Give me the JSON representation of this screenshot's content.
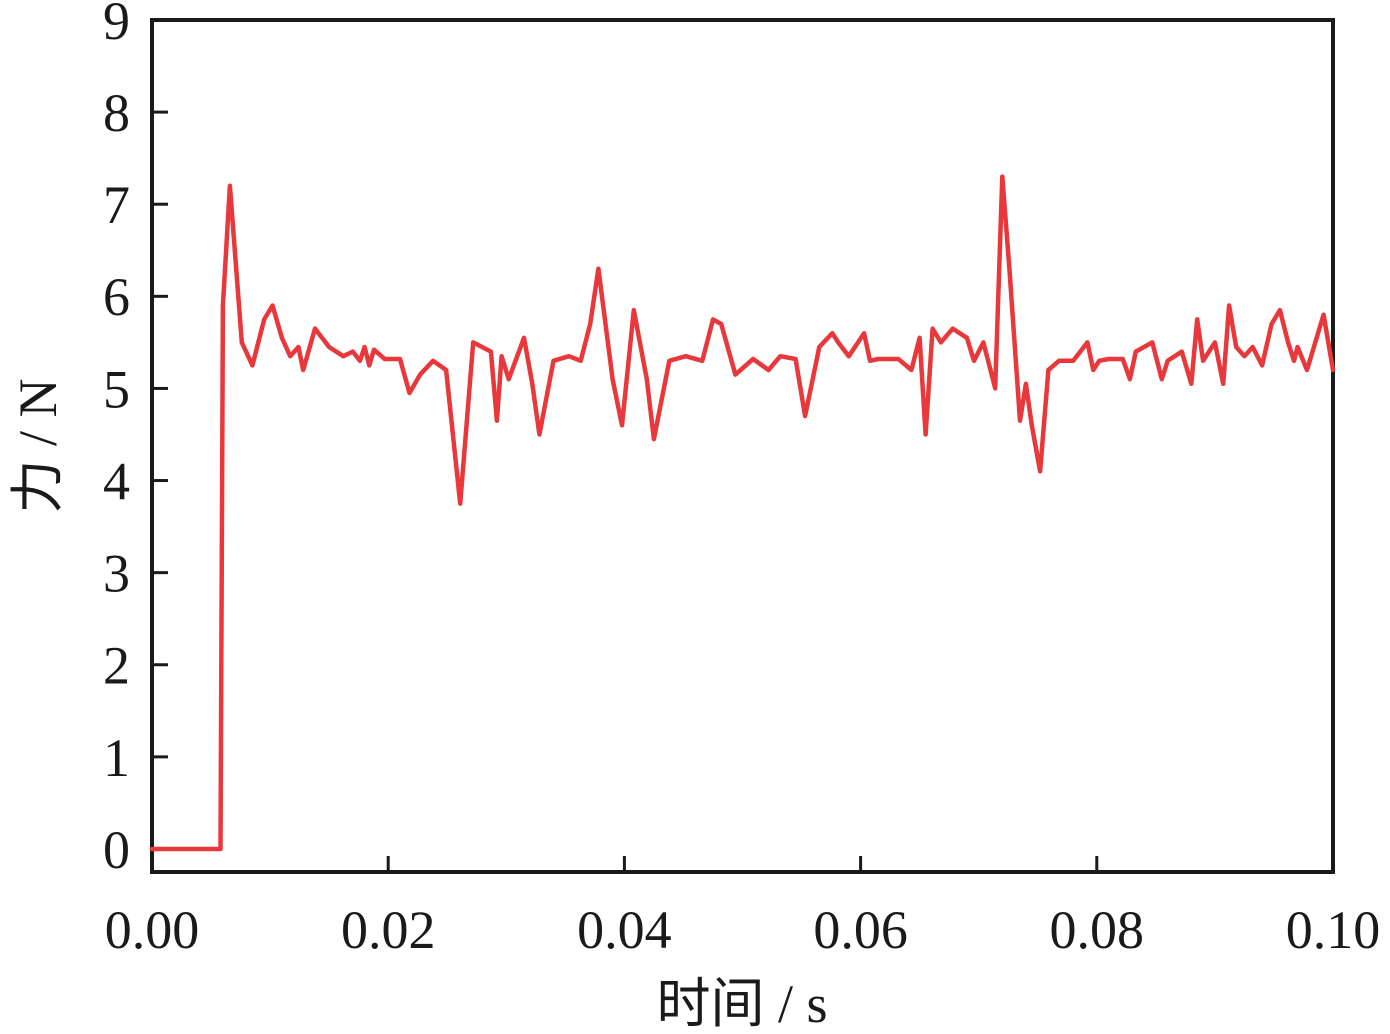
{
  "chart_data": {
    "type": "line",
    "title": "",
    "xlabel": "时间 / s",
    "ylabel": "力 / N",
    "xlim": [
      0.0,
      0.1
    ],
    "ylim": [
      -0.25,
      9
    ],
    "xticks": [
      0.0,
      0.02,
      0.04,
      0.06,
      0.08,
      0.1
    ],
    "xtick_labels": [
      "0.00",
      "0.02",
      "0.04",
      "0.06",
      "0.08",
      "0.10"
    ],
    "yticks": [
      0,
      1,
      2,
      3,
      4,
      5,
      6,
      7,
      8,
      9
    ],
    "ytick_labels": [
      "0",
      "1",
      "2",
      "3",
      "4",
      "5",
      "6",
      "7",
      "8",
      "9"
    ],
    "grid": false,
    "legend": "none",
    "line_color": "#e8383b",
    "series": [
      {
        "x": [
          0.0,
          0.0058,
          0.006,
          0.0066,
          0.0076,
          0.0085,
          0.0095,
          0.0102,
          0.011,
          0.0117,
          0.0124,
          0.0128,
          0.0138,
          0.015,
          0.0162,
          0.017,
          0.0176,
          0.018,
          0.0184,
          0.0188,
          0.0197,
          0.021,
          0.0218,
          0.0227,
          0.0238,
          0.0249,
          0.0261,
          0.0272,
          0.0287,
          0.0292,
          0.0296,
          0.0302,
          0.0315,
          0.0322,
          0.0328,
          0.034,
          0.0353,
          0.0363,
          0.0371,
          0.0378,
          0.039,
          0.0398,
          0.0408,
          0.0419,
          0.0425,
          0.0438,
          0.0452,
          0.0466,
          0.0475,
          0.0482,
          0.0494,
          0.0509,
          0.0522,
          0.0532,
          0.0545,
          0.0553,
          0.0565,
          0.0576,
          0.0581,
          0.059,
          0.0603,
          0.0608,
          0.0615,
          0.0632,
          0.0643,
          0.065,
          0.0655,
          0.0661,
          0.0668,
          0.0678,
          0.069,
          0.0696,
          0.0704,
          0.0714,
          0.072,
          0.0726,
          0.0735,
          0.074,
          0.0745,
          0.0752,
          0.0759,
          0.0768,
          0.078,
          0.0792,
          0.0797,
          0.0802,
          0.081,
          0.0822,
          0.0828,
          0.0833,
          0.0847,
          0.0855,
          0.086,
          0.0872,
          0.088,
          0.0885,
          0.089,
          0.09,
          0.0907,
          0.0912,
          0.0918,
          0.0925,
          0.0932,
          0.094,
          0.0948,
          0.0955,
          0.0962,
          0.0967,
          0.097,
          0.0978,
          0.0992,
          0.1
        ],
        "y": [
          0.0,
          0.0,
          5.9,
          7.2,
          5.5,
          5.25,
          5.75,
          5.9,
          5.55,
          5.35,
          5.45,
          5.2,
          5.65,
          5.45,
          5.35,
          5.4,
          5.3,
          5.45,
          5.25,
          5.42,
          5.32,
          5.32,
          4.95,
          5.15,
          5.3,
          5.2,
          3.75,
          5.5,
          5.4,
          4.65,
          5.35,
          5.1,
          5.55,
          5.05,
          4.5,
          5.3,
          5.35,
          5.3,
          5.7,
          6.3,
          5.1,
          4.6,
          5.85,
          5.1,
          4.45,
          5.3,
          5.35,
          5.3,
          5.75,
          5.7,
          5.15,
          5.32,
          5.2,
          5.35,
          5.32,
          4.7,
          5.45,
          5.6,
          5.5,
          5.35,
          5.6,
          5.3,
          5.32,
          5.32,
          5.2,
          5.55,
          4.5,
          5.65,
          5.5,
          5.65,
          5.55,
          5.3,
          5.5,
          5.0,
          7.3,
          6.3,
          4.65,
          5.05,
          4.6,
          4.1,
          5.2,
          5.3,
          5.3,
          5.5,
          5.2,
          5.3,
          5.32,
          5.32,
          5.1,
          5.4,
          5.5,
          5.1,
          5.3,
          5.4,
          5.05,
          5.75,
          5.3,
          5.5,
          5.05,
          5.9,
          5.45,
          5.35,
          5.45,
          5.25,
          5.7,
          5.85,
          5.5,
          5.3,
          5.45,
          5.2,
          5.8,
          5.2
        ]
      }
    ]
  }
}
